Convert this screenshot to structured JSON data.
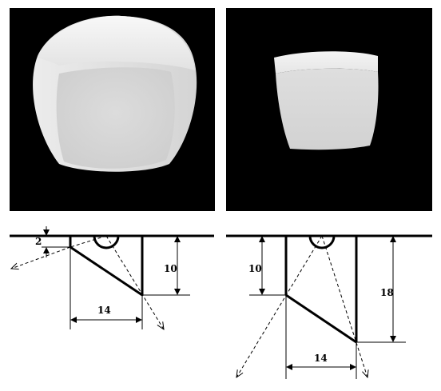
{
  "left_diagram": {
    "dim_offset": "2",
    "dim_height": "10",
    "dim_width": "14"
  },
  "right_diagram": {
    "dim_height_left": "10",
    "dim_height_right": "18",
    "dim_width": "14"
  }
}
